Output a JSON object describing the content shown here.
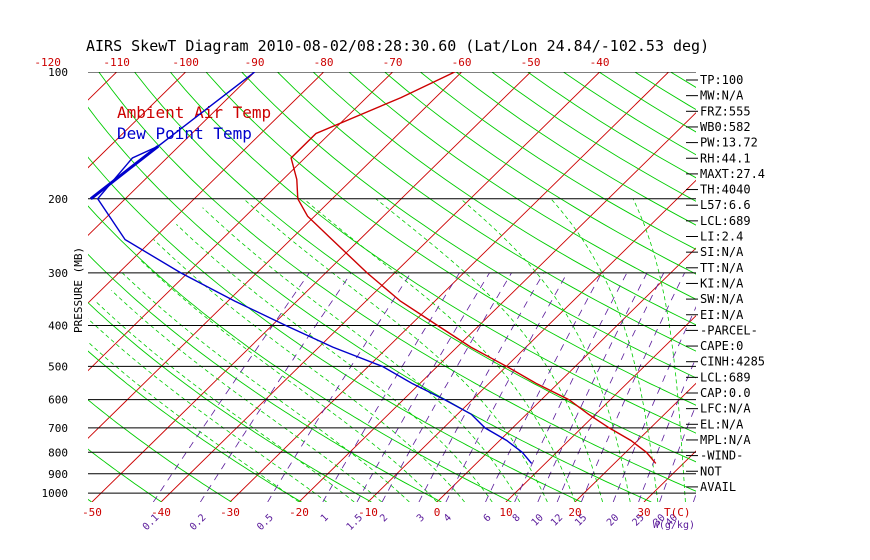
{
  "title": "AIRS SkewT Diagram 2010-08-02/08:28:30.60 (Lat/Lon 24.84/-102.53 deg)",
  "y_axis_label": "PRESSURE (MB)",
  "temp_unit_label": "T(C)",
  "mixing_ratio_unit_label": "W(g/kg)",
  "legend": [
    {
      "label": "Ambient Air Temp",
      "color": "#cc0000"
    },
    {
      "label": "Dew Point Temp",
      "color": "#0000cc"
    }
  ],
  "sidebar": [
    "TP:100",
    "MW:N/A",
    "FRZ:555",
    "WB0:582",
    "PW:13.72",
    "RH:44.1",
    "MAXT:27.4",
    "TH:4040",
    "L57:6.6",
    "LCL:689",
    "LI:2.4",
    "SI:N/A",
    "TT:N/A",
    "KI:N/A",
    "SW:N/A",
    "EI:N/A",
    "-PARCEL-",
    "CAPE:0",
    "CINH:4285",
    "LCL:689",
    "CAP:0.0",
    "LFC:N/A",
    "EL:N/A",
    "MPL:N/A",
    "-WIND-",
    "NOT",
    "AVAIL"
  ],
  "colors": {
    "temp": "#cc0000",
    "dew": "#0000cc",
    "isotherm": "#cc0000",
    "dry_adiabat": "#00cc00",
    "moist_adiabat": "#00cc00",
    "mixing_ratio": "#5a1a9a",
    "isobar": "#000000"
  },
  "chart_data": {
    "type": "line",
    "title": "AIRS SkewT Diagram 2010-08-02/08:28:30.60 (Lat/Lon 24.84/-102.53 deg)",
    "ylabel": "PRESSURE (MB)",
    "xlabel": "T(C)",
    "y_scale": "log",
    "y_direction": "decreasing upward",
    "ylim": [
      1050,
      100
    ],
    "pressure_ticks": [
      100,
      200,
      300,
      400,
      500,
      600,
      700,
      800,
      900,
      1000
    ],
    "bottom_temp_ticks": [
      -50,
      -40,
      -30,
      -20,
      -10,
      0,
      10,
      20,
      30
    ],
    "top_temp_ticks": [
      -120,
      -110,
      -100,
      -90,
      -80,
      -70,
      -60,
      -50,
      -40
    ],
    "mixing_ratio_ticks": [
      "0.1",
      "0.2",
      "0.5",
      "1",
      "1.5",
      "2",
      "3",
      "4",
      "6",
      "8",
      "10",
      "12",
      "15",
      "20",
      "25",
      "30",
      "40",
      "W(g/kg)"
    ],
    "series": [
      {
        "name": "Ambient Air Temp",
        "points": [
          [
            100,
            -61
          ],
          [
            115,
            -65
          ],
          [
            140,
            -72
          ],
          [
            160,
            -72
          ],
          [
            180,
            -68
          ],
          [
            200,
            -65
          ],
          [
            220,
            -61
          ],
          [
            250,
            -54
          ],
          [
            300,
            -44
          ],
          [
            350,
            -35
          ],
          [
            400,
            -26
          ],
          [
            450,
            -18
          ],
          [
            500,
            -10
          ],
          [
            550,
            -3
          ],
          [
            600,
            4
          ],
          [
            650,
            9
          ],
          [
            700,
            14
          ],
          [
            750,
            19
          ],
          [
            800,
            23
          ],
          [
            850,
            26
          ]
        ]
      },
      {
        "name": "Dew Point Temp",
        "points": [
          [
            100,
            -90
          ],
          [
            150,
            -93
          ],
          [
            160,
            -95
          ],
          [
            200,
            -94
          ],
          [
            250,
            -84
          ],
          [
            300,
            -71
          ],
          [
            350,
            -59
          ],
          [
            400,
            -48
          ],
          [
            450,
            -38
          ],
          [
            500,
            -28
          ],
          [
            550,
            -21
          ],
          [
            600,
            -14
          ],
          [
            650,
            -8
          ],
          [
            700,
            -4
          ],
          [
            750,
            1
          ],
          [
            800,
            5
          ],
          [
            850,
            8
          ]
        ]
      }
    ],
    "grid": true,
    "legend_placement": "top-left"
  }
}
